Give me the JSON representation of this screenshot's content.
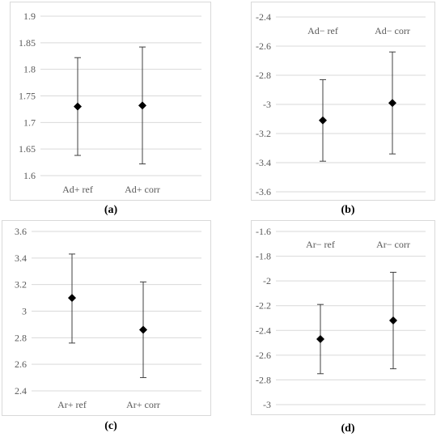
{
  "chart_data": [
    {
      "type": "scatter",
      "panel_label": "a",
      "categories": [
        "Ad+ ref",
        "Ad+ corr"
      ],
      "values": [
        1.73,
        1.732
      ],
      "error_low": [
        1.638,
        1.622
      ],
      "error_high": [
        1.822,
        1.842
      ],
      "ylim": [
        1.6,
        1.9
      ],
      "yticks": [
        "1.6",
        "1.65",
        "1.7",
        "1.75",
        "1.8",
        "1.85",
        "1.9"
      ],
      "category_position": "bottom",
      "grid": true
    },
    {
      "type": "scatter",
      "panel_label": "b",
      "categories": [
        "Ad− ref",
        "Ad− corr"
      ],
      "values": [
        -3.11,
        -2.99
      ],
      "error_low": [
        -3.39,
        -3.34
      ],
      "error_high": [
        -2.83,
        -2.64
      ],
      "ylim": [
        -3.6,
        -2.4
      ],
      "yticks": [
        "-2.4",
        "-2.6",
        "-2.8",
        "-3",
        "-3.2",
        "-3.4",
        "-3.6"
      ],
      "category_position": "top",
      "grid": true
    },
    {
      "type": "scatter",
      "panel_label": "c",
      "categories": [
        "Ar+ ref",
        "Ar+ corr"
      ],
      "values": [
        3.1,
        2.86
      ],
      "error_low": [
        2.76,
        2.5
      ],
      "error_high": [
        3.43,
        3.22
      ],
      "ylim": [
        2.4,
        3.6
      ],
      "yticks": [
        "2.4",
        "2.6",
        "2.8",
        "3",
        "3.2",
        "3.4",
        "3.6"
      ],
      "category_position": "bottom",
      "grid": true
    },
    {
      "type": "scatter",
      "panel_label": "d",
      "categories": [
        "Ar− ref",
        "Ar− corr"
      ],
      "values": [
        -2.47,
        -2.32
      ],
      "error_low": [
        -2.75,
        -2.71
      ],
      "error_high": [
        -2.19,
        -1.93
      ],
      "ylim": [
        -3.0,
        -1.6
      ],
      "yticks": [
        "-1.6",
        "-1.8",
        "-2",
        "-2.2",
        "-2.4",
        "-2.6",
        "-2.8",
        "-3"
      ],
      "category_position": "top",
      "grid": true
    }
  ],
  "captions": [
    "(a)",
    "(b)",
    "(c)",
    "(d)"
  ],
  "colors": {
    "grid": "#d9d9d9",
    "marker": "#000000",
    "errorbar": "#404040",
    "text": "#595959"
  }
}
